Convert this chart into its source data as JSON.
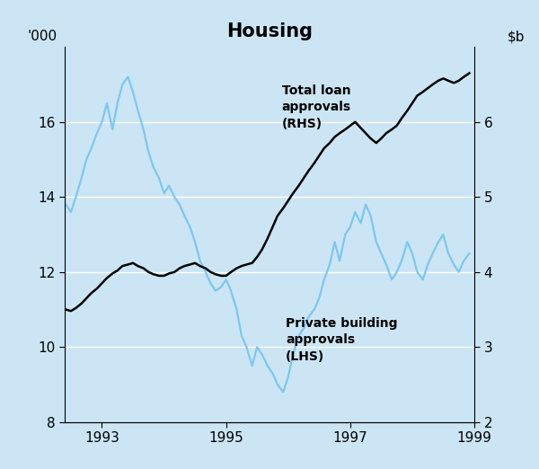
{
  "title": "Housing",
  "background_color": "#cce5f5",
  "lhs_label": "'000",
  "xlabel_ticks": [
    1993,
    1995,
    1997,
    1999
  ],
  "lhs_yticks": [
    8,
    10,
    12,
    14,
    16
  ],
  "rhs_yticks": [
    2,
    3,
    4,
    5,
    6
  ],
  "lhs_ylim": [
    8,
    18
  ],
  "rhs_ylim": [
    2,
    7
  ],
  "annotation_total_loan": "Total loan\napprovals\n(RHS)",
  "annotation_private_building": "Private building\napprovals\n(LHS)",
  "light_blue_color": "#7bc8f0",
  "black_color": "#000000",
  "lhs_x": [
    1992.42,
    1992.5,
    1992.58,
    1992.67,
    1992.75,
    1992.83,
    1992.92,
    1993.0,
    1993.08,
    1993.17,
    1993.25,
    1993.33,
    1993.42,
    1993.5,
    1993.58,
    1993.67,
    1993.75,
    1993.83,
    1993.92,
    1994.0,
    1994.08,
    1994.17,
    1994.25,
    1994.33,
    1994.42,
    1994.5,
    1994.58,
    1994.67,
    1994.75,
    1994.83,
    1994.92,
    1995.0,
    1995.08,
    1995.17,
    1995.25,
    1995.33,
    1995.42,
    1995.5,
    1995.58,
    1995.67,
    1995.75,
    1995.83,
    1995.92,
    1996.0,
    1996.08,
    1996.17,
    1996.25,
    1996.33,
    1996.42,
    1996.5,
    1996.58,
    1996.67,
    1996.75,
    1996.83,
    1996.92,
    1997.0,
    1997.08,
    1997.17,
    1997.25,
    1997.33,
    1997.42,
    1997.5,
    1997.58,
    1997.67,
    1997.75,
    1997.83,
    1997.92,
    1998.0,
    1998.08,
    1998.17,
    1998.25,
    1998.33,
    1998.42,
    1998.5,
    1998.58,
    1998.67,
    1998.75,
    1998.83,
    1998.92
  ],
  "lhs_y": [
    13.8,
    13.6,
    14.0,
    14.5,
    15.0,
    15.3,
    15.7,
    16.0,
    16.5,
    15.8,
    16.5,
    17.0,
    17.2,
    16.8,
    16.3,
    15.8,
    15.2,
    14.8,
    14.5,
    14.1,
    14.3,
    14.0,
    13.8,
    13.5,
    13.2,
    12.8,
    12.3,
    12.0,
    11.7,
    11.5,
    11.6,
    11.8,
    11.5,
    11.0,
    10.3,
    10.0,
    9.5,
    10.0,
    9.8,
    9.5,
    9.3,
    9.0,
    8.8,
    9.2,
    9.8,
    10.3,
    10.5,
    10.8,
    11.0,
    11.3,
    11.8,
    12.2,
    12.8,
    12.3,
    13.0,
    13.2,
    13.6,
    13.3,
    13.8,
    13.5,
    12.8,
    12.5,
    12.2,
    11.8,
    12.0,
    12.3,
    12.8,
    12.5,
    12.0,
    11.8,
    12.2,
    12.5,
    12.8,
    13.0,
    12.5,
    12.2,
    12.0,
    12.3,
    12.5
  ],
  "rhs_x": [
    1992.42,
    1992.5,
    1992.58,
    1992.67,
    1992.75,
    1992.83,
    1992.92,
    1993.0,
    1993.08,
    1993.17,
    1993.25,
    1993.33,
    1993.42,
    1993.5,
    1993.58,
    1993.67,
    1993.75,
    1993.83,
    1993.92,
    1994.0,
    1994.08,
    1994.17,
    1994.25,
    1994.33,
    1994.42,
    1994.5,
    1994.58,
    1994.67,
    1994.75,
    1994.83,
    1994.92,
    1995.0,
    1995.08,
    1995.17,
    1995.25,
    1995.33,
    1995.42,
    1995.5,
    1995.58,
    1995.67,
    1995.75,
    1995.83,
    1995.92,
    1996.0,
    1996.08,
    1996.17,
    1996.25,
    1996.33,
    1996.42,
    1996.5,
    1996.58,
    1996.67,
    1996.75,
    1996.83,
    1996.92,
    1997.0,
    1997.08,
    1997.17,
    1997.25,
    1997.33,
    1997.42,
    1997.5,
    1997.58,
    1997.67,
    1997.75,
    1997.83,
    1997.92,
    1998.0,
    1998.08,
    1998.17,
    1998.25,
    1998.33,
    1998.42,
    1998.5,
    1998.58,
    1998.67,
    1998.75,
    1998.83,
    1998.92
  ],
  "rhs_y": [
    3.5,
    3.48,
    3.52,
    3.58,
    3.65,
    3.72,
    3.78,
    3.85,
    3.92,
    3.98,
    4.02,
    4.08,
    4.1,
    4.12,
    4.08,
    4.05,
    4.0,
    3.97,
    3.95,
    3.95,
    3.98,
    4.0,
    4.05,
    4.08,
    4.1,
    4.12,
    4.08,
    4.05,
    4.0,
    3.97,
    3.95,
    3.95,
    4.0,
    4.05,
    4.08,
    4.1,
    4.12,
    4.2,
    4.3,
    4.45,
    4.6,
    4.75,
    4.85,
    4.95,
    5.05,
    5.15,
    5.25,
    5.35,
    5.45,
    5.55,
    5.65,
    5.72,
    5.8,
    5.85,
    5.9,
    5.95,
    6.0,
    5.92,
    5.85,
    5.78,
    5.72,
    5.78,
    5.85,
    5.9,
    5.95,
    6.05,
    6.15,
    6.25,
    6.35,
    6.4,
    6.45,
    6.5,
    6.55,
    6.58,
    6.55,
    6.52,
    6.55,
    6.6,
    6.65
  ]
}
